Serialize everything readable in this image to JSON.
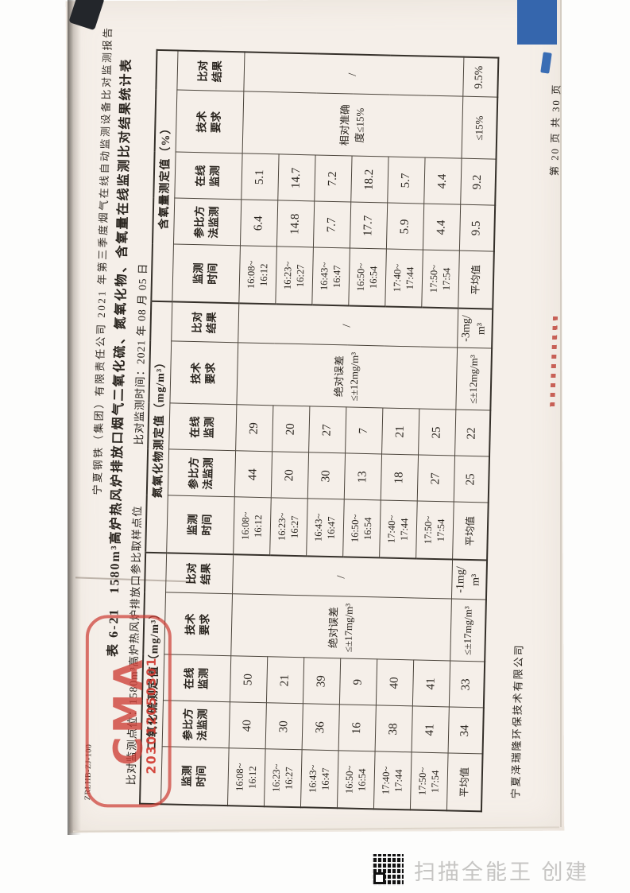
{
  "page": {
    "form_code": "ZRLHB-ZJ-100",
    "report_header": "宁夏钢铁（集团）有限责任公司 2021 年第三季度烟气在线自动监测设备比对监测报告",
    "table_title": "表 6-21　1580m³高炉热风炉排放口烟气二氧化硫、氮氧化物、含氧量在线监测比对结果统计表",
    "monitor_point": "比对监测点位：1580m³高炉热风炉排放口参比取样点位",
    "monitor_time": "比对监测时间：2021 年 08 月 05 日",
    "footer_company": "宁夏泽瑞隆环保技术有限公司",
    "footer_page": "第 20 页 共 30 页"
  },
  "stamp": {
    "letters": "CMA",
    "number": "203012050301"
  },
  "watermark": {
    "text": "扫描全能王 创建"
  },
  "colors": {
    "paper": "#f5efe9",
    "ink": "#29241e",
    "stamp_red": "#cd3e36",
    "blue_artifact": "#3566ad",
    "watermark_gray": "#c6c5c3"
  },
  "table": {
    "sub_headers": [
      "监测\n时间",
      "参比方\n法监测",
      "在线\n监测",
      "技术\n要求",
      "比对\n结果"
    ],
    "times": [
      "16:08~\n16:12",
      "16:23~\n16:27",
      "16:43~\n16:47",
      "16:50~\n16:54",
      "17:40~\n17:44",
      "17:50~\n17:54"
    ],
    "avg_label": "平均值",
    "groups": [
      {
        "title": "二氧化硫测定值（mg/m³）",
        "ref": [
          "40",
          "30",
          "36",
          "16",
          "38",
          "41"
        ],
        "ref_avg": "34",
        "cems": [
          "50",
          "21",
          "39",
          "9",
          "40",
          "41"
        ],
        "cems_avg": "33",
        "tech": "绝对误差\n≤±17mg/m³",
        "tech_avg": "≤±17mg/m³",
        "result": "/",
        "result_avg": "-1mg/\nm³"
      },
      {
        "title": "氮氧化物测定值（mg/m³）",
        "ref": [
          "44",
          "20",
          "30",
          "13",
          "18",
          "27"
        ],
        "ref_avg": "25",
        "cems": [
          "29",
          "20",
          "27",
          "7",
          "21",
          "25"
        ],
        "cems_avg": "22",
        "tech": "绝对误差\n≤±12mg/m³",
        "tech_avg": "≤±12mg/m³",
        "result": "/",
        "result_avg": "-3mg/\nm³"
      },
      {
        "title": "含氧量测定值（%）",
        "ref": [
          "6.4",
          "14.8",
          "7.7",
          "17.7",
          "5.9",
          "4.4"
        ],
        "ref_avg": "9.5",
        "cems": [
          "5.1",
          "14.7",
          "7.2",
          "18.2",
          "5.7",
          "4.4"
        ],
        "cems_avg": "9.2",
        "tech": "相对准确\n度≤15%",
        "tech_avg": "≤15%",
        "result": "/",
        "result_avg": "9.5%"
      }
    ]
  }
}
